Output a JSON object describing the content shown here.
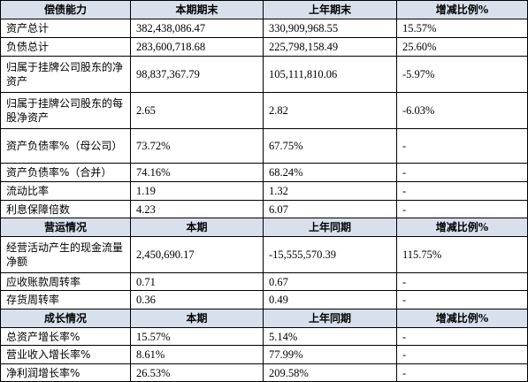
{
  "sections": [
    {
      "header": [
        "偿债能力",
        "本期期末",
        "上年期末",
        "增减比例%"
      ],
      "rows": [
        [
          "资产总计",
          "382,438,086.47",
          "330,909,968.55",
          "15.57%"
        ],
        [
          "负债总计",
          "283,600,718.68",
          "225,798,158.49",
          "25.60%"
        ],
        [
          "归属于挂牌公司股东的净资产",
          "98,837,367.79",
          "105,111,810.06",
          "-5.97%"
        ],
        [
          "归属于挂牌公司股东的每股净资产",
          "2.65",
          "2.82",
          "-6.03%"
        ],
        [
          "资产负债率%（母公司）",
          "73.72%",
          "67.75%",
          "-"
        ],
        [
          "资产负债率%（合并）",
          "74.16%",
          "68.24%",
          "-"
        ],
        [
          "流动比率",
          "1.19",
          "1.32",
          "-"
        ],
        [
          "利息保障倍数",
          "4.23",
          "6.07",
          "-"
        ]
      ]
    },
    {
      "header": [
        "营运情况",
        "本期",
        "上年同期",
        "增减比例%"
      ],
      "rows": [
        [
          "经营活动产生的现金流量净额",
          "2,450,690.17",
          "-15,555,570.39",
          "115.75%"
        ],
        [
          "应收账款周转率",
          "0.71",
          "0.67",
          "-"
        ],
        [
          "存货周转率",
          "0.36",
          "0.49",
          "-"
        ]
      ]
    },
    {
      "header": [
        "成长情况",
        "本期",
        "上年同期",
        "增减比例%"
      ],
      "rows": [
        [
          "总资产增长率%",
          "15.57%",
          "5.14%",
          "-"
        ],
        [
          "营业收入增长率%",
          "8.61%",
          "77.99%",
          "-"
        ],
        [
          "净利润增长率%",
          "26.53%",
          "209.58%",
          "-"
        ]
      ]
    }
  ]
}
